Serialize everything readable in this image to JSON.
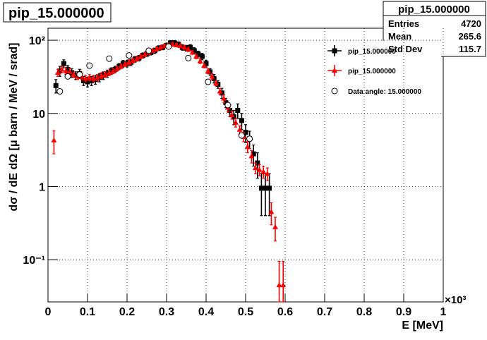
{
  "chart_data": {
    "type": "scatter",
    "title": "pip_15.000000",
    "x_label": "E [MeV]",
    "x_exponent": "×10³",
    "y_label": "dσ / dE dΩ [μ barn / MeV / srad]",
    "log_y": true,
    "grid": true,
    "legend": "upper right",
    "xlim": [
      0,
      1
    ],
    "ylim": [
      0.0265,
      146
    ],
    "xticks": [
      0,
      0.1,
      0.2,
      0.3,
      0.4,
      0.5,
      0.6,
      0.7,
      0.8,
      0.9,
      1
    ],
    "yticks": [
      {
        "value": 0.1,
        "label": "10⁻¹"
      },
      1,
      10,
      {
        "value": 100,
        "label": "10²"
      }
    ],
    "stats": {
      "title": "pip_15.000000",
      "rows": [
        {
          "label": "Entries",
          "value": "4720"
        },
        {
          "label": "Mean",
          "value": "265.6"
        },
        {
          "label": "Std Dev",
          "value": "115.7"
        }
      ]
    },
    "series": [
      {
        "name": "pip_15.000000",
        "color": "#000000",
        "marker": "square",
        "x": [
          0.02,
          0.03,
          0.04,
          0.05,
          0.06,
          0.07,
          0.08,
          0.09,
          0.1,
          0.11,
          0.12,
          0.13,
          0.14,
          0.15,
          0.16,
          0.17,
          0.18,
          0.19,
          0.2,
          0.21,
          0.22,
          0.23,
          0.24,
          0.25,
          0.26,
          0.27,
          0.28,
          0.29,
          0.3,
          0.31,
          0.32,
          0.33,
          0.34,
          0.35,
          0.36,
          0.37,
          0.38,
          0.39,
          0.4,
          0.41,
          0.42,
          0.43,
          0.44,
          0.45,
          0.46,
          0.47,
          0.48,
          0.49,
          0.5,
          0.51,
          0.52,
          0.53,
          0.54,
          0.55,
          0.56
        ],
        "values": [
          24,
          38,
          48,
          40,
          36,
          33,
          35,
          28,
          27,
          28,
          29,
          31,
          33,
          35,
          38,
          40,
          44,
          48,
          48,
          50,
          55,
          57,
          62,
          65,
          68,
          72,
          78,
          80,
          85,
          92,
          92,
          88,
          80,
          78,
          80,
          72,
          65,
          60,
          48,
          37,
          30,
          25,
          19,
          14,
          11,
          9,
          11,
          8,
          5.5,
          4.5,
          2.8,
          2.1,
          0.95,
          0.95,
          0.95
        ],
        "errors": [
          5,
          6,
          6,
          5,
          5,
          4,
          5,
          4,
          4,
          4,
          4,
          4,
          4,
          4,
          4,
          4,
          4,
          5,
          5,
          5,
          5,
          5,
          5,
          5,
          5,
          6,
          6,
          6,
          6,
          7,
          7,
          7,
          7,
          7,
          7,
          7,
          6,
          6,
          5,
          4,
          4,
          3,
          3,
          2,
          2,
          2,
          2.5,
          2,
          1.5,
          1.2,
          0.9,
          0.8,
          0.55,
          0.55,
          0.55
        ]
      },
      {
        "name": "pip_15.000000",
        "color": "#ff0000",
        "marker": "triangle",
        "x": [
          0.015,
          0.025,
          0.035,
          0.045,
          0.055,
          0.065,
          0.075,
          0.085,
          0.095,
          0.105,
          0.115,
          0.125,
          0.135,
          0.145,
          0.155,
          0.165,
          0.175,
          0.185,
          0.195,
          0.205,
          0.215,
          0.225,
          0.235,
          0.245,
          0.255,
          0.265,
          0.275,
          0.285,
          0.295,
          0.305,
          0.315,
          0.325,
          0.335,
          0.345,
          0.355,
          0.365,
          0.375,
          0.385,
          0.395,
          0.405,
          0.415,
          0.425,
          0.435,
          0.445,
          0.455,
          0.465,
          0.475,
          0.485,
          0.495,
          0.505,
          0.515,
          0.525,
          0.535,
          0.545,
          0.555,
          0.565,
          0.575,
          0.585,
          0.595
        ],
        "values": [
          4.3,
          36,
          40,
          38,
          37,
          34,
          32,
          32,
          30,
          31,
          30,
          31,
          33,
          34,
          36,
          38,
          41,
          44,
          47,
          50,
          53,
          56,
          60,
          64,
          68,
          72,
          76,
          80,
          84,
          86,
          88,
          86,
          84,
          80,
          75,
          68,
          60,
          52,
          45,
          38,
          32,
          26,
          20,
          16,
          12,
          9.5,
          7.5,
          6,
          4.8,
          3.5,
          2.6,
          1.8,
          1.7,
          1.6,
          1.5,
          0.45,
          0.28,
          0.045,
          0.045
        ],
        "errors": [
          1.5,
          4,
          4,
          4,
          4,
          3,
          3,
          3,
          3,
          3,
          3,
          3,
          3,
          3,
          3,
          3,
          3,
          3,
          3,
          4,
          4,
          4,
          4,
          4,
          4,
          4,
          5,
          5,
          5,
          5,
          5,
          5,
          5,
          5,
          5,
          4,
          4,
          4,
          3,
          3,
          3,
          2,
          2,
          2,
          1.5,
          1.2,
          1,
          0.8,
          0.7,
          0.6,
          0.5,
          0.3,
          0.3,
          0.3,
          0.3,
          0.15,
          0.1,
          0.05,
          0.05
        ]
      },
      {
        "name": "Data angle: 15.000000",
        "color": "#000000",
        "marker": "circle",
        "x": [
          0.03,
          0.05,
          0.08,
          0.105,
          0.155,
          0.205,
          0.255,
          0.305,
          0.355,
          0.405,
          0.455,
          0.49,
          0.51
        ],
        "values": [
          20,
          32,
          34,
          45,
          56,
          62,
          72,
          82,
          57,
          27,
          13,
          5,
          4.5
        ]
      }
    ]
  }
}
